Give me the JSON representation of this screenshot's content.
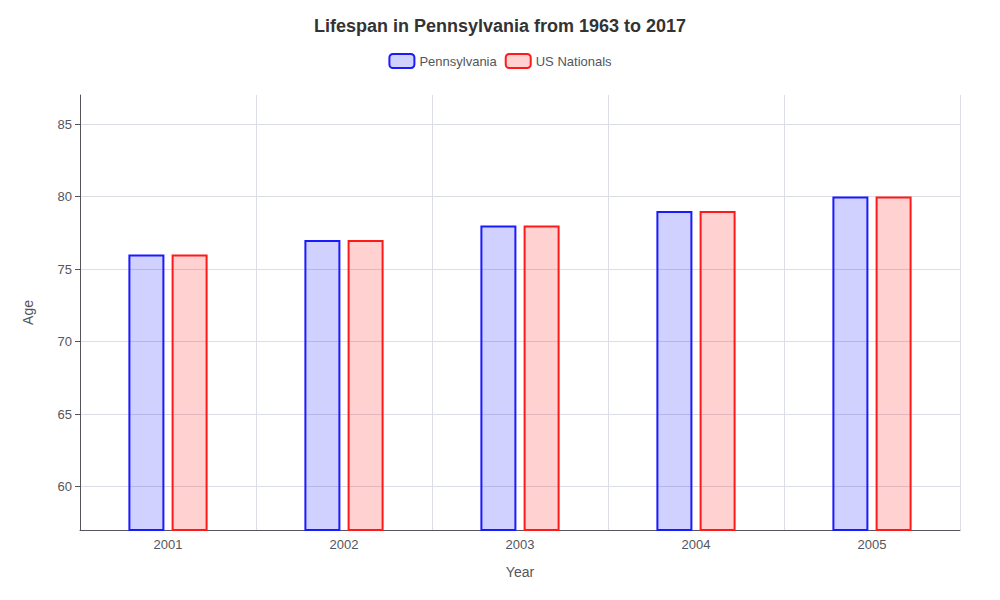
{
  "chart_data": {
    "type": "bar",
    "title": "Lifespan in Pennsylvania from 1963 to 2017",
    "x_label": "Year",
    "y_label": "Age",
    "categories": [
      "2001",
      "2002",
      "2003",
      "2004",
      "2005"
    ],
    "series": [
      {
        "name": "Pennsylvania",
        "color": "#1a1aff",
        "values": [
          76,
          77,
          78,
          79,
          80
        ]
      },
      {
        "name": "US Nationals",
        "color": "#ff1a1a",
        "values": [
          76,
          77,
          78,
          79,
          80
        ]
      }
    ],
    "ylim": [
      57,
      87
    ],
    "yticks": [
      60,
      65,
      70,
      75,
      80,
      85
    ],
    "grid": true,
    "legend": "top"
  }
}
